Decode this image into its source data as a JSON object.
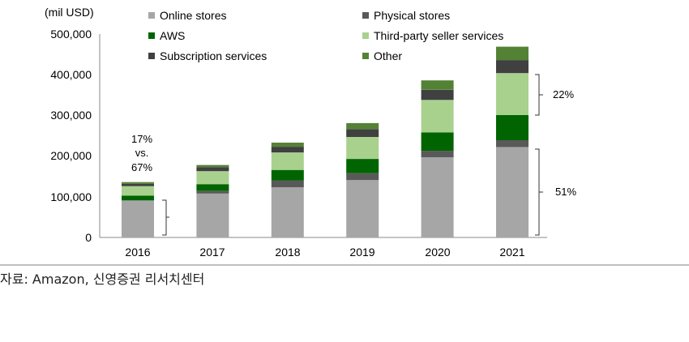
{
  "chart_data": {
    "type": "bar",
    "stacked": true,
    "unit_label": "(mil USD)",
    "categories": [
      "2016",
      "2017",
      "2018",
      "2019",
      "2020",
      "2021"
    ],
    "y_ticks": [
      "0",
      "100,000",
      "200,000",
      "300,000",
      "400,000",
      "500,000"
    ],
    "ylim": [
      0,
      500000
    ],
    "grid": false,
    "legend": "top",
    "series": [
      {
        "name": "Online stores",
        "color": "#a6a6a6",
        "values": [
          91000,
          108000,
          123000,
          141000,
          197000,
          222000
        ]
      },
      {
        "name": "Physical stores",
        "color": "#595959",
        "values": [
          0,
          6000,
          17000,
          17000,
          16000,
          17000
        ]
      },
      {
        "name": "AWS",
        "color": "#006400",
        "values": [
          12000,
          17000,
          26000,
          35000,
          45000,
          62000
        ]
      },
      {
        "name": "Third-party seller services",
        "color": "#a9d18e",
        "values": [
          23000,
          32000,
          43000,
          54000,
          80000,
          103000
        ]
      },
      {
        "name": "Subscription services",
        "color": "#404040",
        "values": [
          6000,
          10000,
          14000,
          19000,
          25000,
          32000
        ]
      },
      {
        "name": "Other",
        "color": "#548235",
        "values": [
          4000,
          5000,
          10000,
          15000,
          23000,
          33000
        ]
      }
    ],
    "annotations": {
      "share_2016": [
        "17%",
        "vs.",
        "67%"
      ],
      "share_2021_upper": "22%",
      "share_2021_lower": "51%"
    }
  },
  "source": "자료: Amazon, 신영증권 리서치센터"
}
